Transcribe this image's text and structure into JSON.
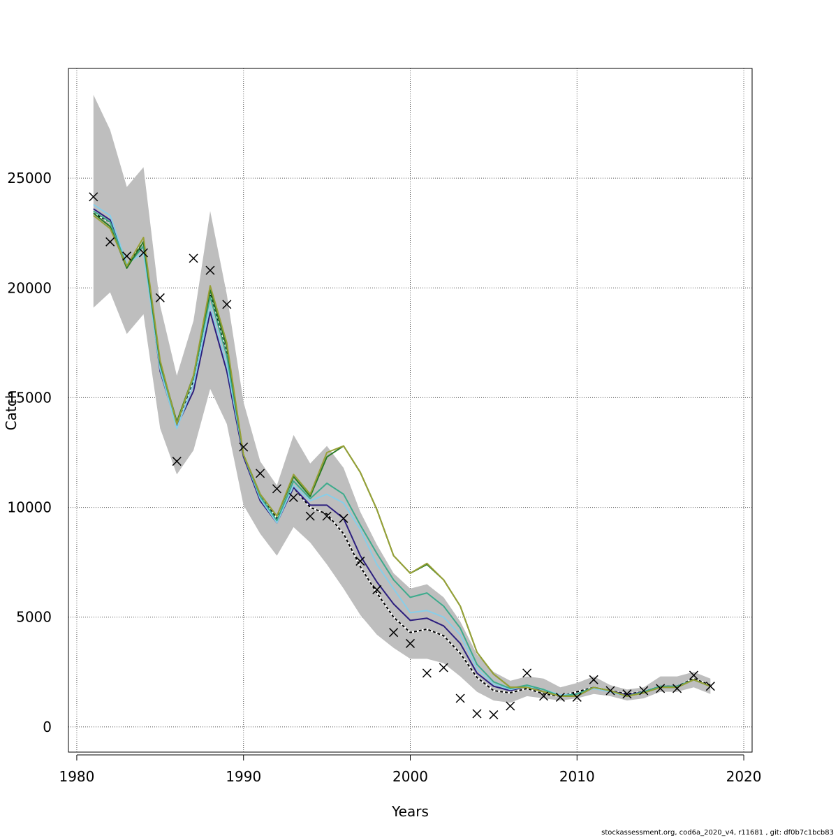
{
  "chart_data": {
    "type": "line",
    "xlabel": "Years",
    "ylabel": "Catch",
    "xlim": [
      1979.5,
      2020.5
    ],
    "ylim": [
      -1150,
      30000
    ],
    "x_ticks": [
      1980,
      1990,
      2000,
      2010,
      2020
    ],
    "y_ticks": [
      0,
      5000,
      10000,
      15000,
      20000,
      25000
    ],
    "x_tick_labels": [
      "1980",
      "1990",
      "2000",
      "2010",
      "2020"
    ],
    "y_tick_labels": [
      "0",
      "5000",
      "10000",
      "15000",
      "20000",
      "25000"
    ],
    "grid": true,
    "years": [
      1981,
      1982,
      1983,
      1984,
      1985,
      1986,
      1987,
      1988,
      1989,
      1990,
      1991,
      1992,
      1993,
      1994,
      1995,
      1996,
      1997,
      1998,
      1999,
      2000,
      2001,
      2002,
      2003,
      2004,
      2005,
      2006,
      2007,
      2008,
      2009,
      2010,
      2011,
      2012,
      2013,
      2014,
      2015,
      2016,
      2017,
      2018
    ],
    "band": {
      "color": "#bebebe",
      "upper": [
        28800,
        27200,
        24600,
        25500,
        19200,
        16000,
        18500,
        23500,
        19700,
        14800,
        12100,
        11000,
        13300,
        12000,
        12800,
        11800,
        9800,
        8300,
        7000,
        6300,
        6500,
        5900,
        4800,
        3300,
        2500,
        2100,
        2300,
        2200,
        1800,
        2000,
        2300,
        1900,
        1700,
        1800,
        2300,
        2300,
        2500,
        2200
      ],
      "lower": [
        19100,
        19800,
        17900,
        18800,
        13600,
        11500,
        12600,
        15400,
        13800,
        10100,
        8800,
        7800,
        9100,
        8400,
        7400,
        6300,
        5100,
        4200,
        3600,
        3100,
        3100,
        2900,
        2300,
        1600,
        1200,
        1100,
        1400,
        1300,
        1200,
        1300,
        1500,
        1400,
        1200,
        1300,
        1600,
        1600,
        1800,
        1500
      ]
    },
    "observed": {
      "marker": "x",
      "color": "#000000",
      "values": [
        24150,
        22100,
        21450,
        21600,
        19550,
        12100,
        21350,
        20800,
        19250,
        12750,
        11550,
        10850,
        10450,
        9600,
        9600,
        9500,
        7550,
        6250,
        4300,
        3800,
        2450,
        2700,
        1300,
        600,
        550,
        950,
        2450,
        1400,
        1350,
        1350,
        2150,
        1650,
        1500,
        1650,
        1750,
        1750,
        2350,
        1850
      ]
    },
    "series": [
      {
        "color": "#000000",
        "dashed": true,
        "values": [
          23400,
          23000,
          21000,
          22100,
          16400,
          13800,
          15800,
          19700,
          17000,
          12400,
          10500,
          9500,
          10900,
          10000,
          9700,
          8800,
          7300,
          6100,
          5000,
          4300,
          4450,
          4150,
          3350,
          2250,
          1650,
          1550,
          1750,
          1500,
          1400,
          1600,
          1800,
          1650,
          1500,
          1600,
          1850,
          1850,
          2200,
          1900
        ]
      },
      {
        "color": "#2c1e7e",
        "values": [
          23600,
          23100,
          21000,
          21900,
          16200,
          13700,
          15300,
          18900,
          16200,
          12300,
          10300,
          9300,
          10900,
          10100,
          10100,
          9500,
          7800,
          6600,
          5600,
          4850,
          4950,
          4600,
          3800,
          2450,
          1850,
          1650,
          1850,
          1600,
          1400,
          1500,
          1800,
          1650,
          1450,
          1600,
          1850,
          1850,
          2150,
          1850
        ]
      },
      {
        "color": "#87cee9",
        "values": [
          23800,
          23300,
          21100,
          21600,
          16300,
          13600,
          15600,
          19200,
          16500,
          12400,
          10400,
          9300,
          11000,
          10300,
          10600,
          10200,
          9000,
          7400,
          6300,
          5200,
          5300,
          5000,
          4200,
          2650,
          1950,
          1700,
          1850,
          1700,
          1450,
          1500,
          1750,
          1600,
          1400,
          1550,
          1800,
          1800,
          2150,
          1850
        ]
      },
      {
        "color": "#3cab8c",
        "values": [
          23500,
          23000,
          21000,
          21900,
          16500,
          13800,
          15900,
          19600,
          16900,
          12400,
          10500,
          9400,
          11200,
          10400,
          11100,
          10600,
          9200,
          7900,
          6700,
          5900,
          6100,
          5500,
          4500,
          2850,
          2050,
          1750,
          1900,
          1700,
          1400,
          1500,
          1800,
          1650,
          1400,
          1600,
          1850,
          1850,
          2150,
          1850
        ]
      },
      {
        "color": "#2b7a25",
        "values": [
          23400,
          22800,
          20900,
          22100,
          16600,
          13900,
          16000,
          19900,
          17300,
          12400,
          10600,
          9600,
          11400,
          10500,
          12300,
          12800,
          11600,
          9900,
          7800,
          7000,
          7400,
          6700,
          5500,
          3400,
          2400,
          1800,
          1800,
          1600,
          1400,
          1400,
          1800,
          1650,
          1400,
          1550,
          1800,
          1800,
          2150,
          1850
        ]
      },
      {
        "color": "#98a036",
        "values": [
          23300,
          22700,
          21000,
          22300,
          16700,
          13800,
          16000,
          20100,
          17500,
          12400,
          10600,
          9600,
          11500,
          10600,
          12500,
          12800,
          11600,
          9900,
          7800,
          7000,
          7450,
          6700,
          5500,
          3400,
          2400,
          1800,
          1800,
          1600,
          1400,
          1400,
          1800,
          1650,
          1400,
          1550,
          1800,
          1800,
          2150,
          1850
        ]
      }
    ]
  },
  "footer": {
    "text": "stockassessment.org, cod6a_2020_v4, r11681 , git: df0b7c1bcb83"
  }
}
